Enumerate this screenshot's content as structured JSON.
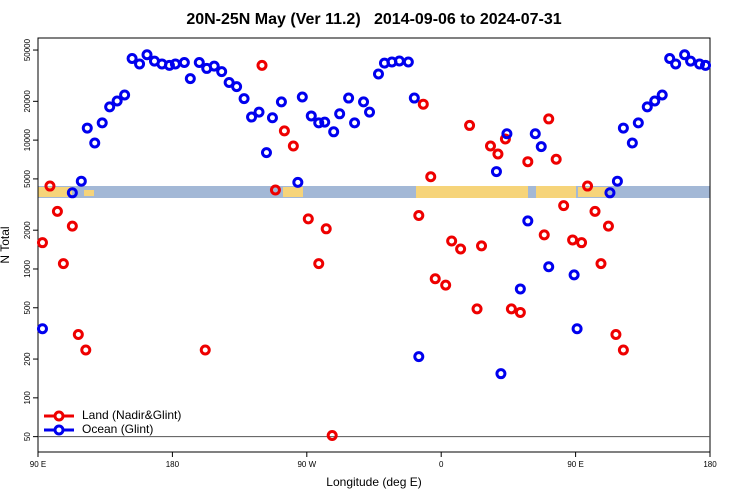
{
  "chart_data": {
    "type": "scatter",
    "title": "20N-25N May (Ver 11.2)   2014-09-06 to 2024-07-31",
    "x_label": "Longitude (deg E)",
    "y_label": "N Total",
    "xlim": [
      90,
      540
    ],
    "xticks": [
      {
        "value": 90,
        "label": "90 E"
      },
      {
        "value": 180,
        "label": "180"
      },
      {
        "value": 270,
        "label": "90 W"
      },
      {
        "value": 360,
        "label": "0"
      },
      {
        "value": 450,
        "label": "90 E"
      },
      {
        "value": 540,
        "label": "180"
      }
    ],
    "ylim": [
      38,
      62000
    ],
    "y_scale": "log",
    "yticks": [
      50,
      100,
      200,
      500,
      1000,
      2000,
      5000,
      10000,
      20000,
      50000
    ],
    "hline": 50,
    "legend": "lower left",
    "series": [
      {
        "name": "Land (Nadir&Glint)",
        "color": "#ee0000",
        "x": [
          93,
          98,
          103,
          107,
          113,
          117,
          122,
          202,
          240,
          249,
          255,
          261,
          271,
          278,
          283,
          287,
          345,
          348,
          353,
          356,
          363,
          367,
          373,
          379,
          384,
          387,
          393,
          398,
          403,
          407,
          413,
          418,
          429,
          432,
          437,
          442,
          448,
          454,
          458,
          463,
          467,
          472,
          477,
          482
        ],
        "values": [
          1600,
          4400,
          2800,
          1100,
          2150,
          310,
          235,
          235,
          38000,
          4100,
          11800,
          9000,
          2450,
          1100,
          2050,
          51,
          2600,
          19000,
          5200,
          840,
          750,
          1650,
          1430,
          13000,
          490,
          1510,
          9000,
          7800,
          10200,
          490,
          460,
          6800,
          1840,
          14600,
          7100,
          3100,
          1680,
          1600,
          4400,
          2800,
          1100,
          2150,
          310,
          235
        ]
      },
      {
        "name": "Ocean (Glint)",
        "color": "#0000ee",
        "x": [
          93,
          113,
          119,
          123,
          128,
          133,
          138,
          143,
          148,
          153,
          158,
          163,
          168,
          173,
          178,
          182,
          188,
          192,
          198,
          203,
          208,
          213,
          218,
          223,
          228,
          233,
          238,
          243,
          247,
          253,
          264,
          267,
          273,
          278,
          282,
          288,
          292,
          298,
          302,
          308,
          312,
          318,
          322,
          327,
          332,
          338,
          342,
          345,
          397,
          400,
          404,
          413,
          418,
          423,
          427,
          432,
          449,
          451,
          473,
          478,
          482,
          488,
          492,
          498,
          503,
          508,
          513,
          517,
          523,
          527,
          533,
          537
        ],
        "values": [
          344,
          3900,
          4800,
          12400,
          9500,
          13600,
          18100,
          20100,
          22400,
          43000,
          39000,
          46000,
          41000,
          39000,
          38000,
          39000,
          40000,
          30000,
          40000,
          36000,
          37500,
          34000,
          28000,
          26000,
          21000,
          15100,
          16500,
          8000,
          14900,
          19800,
          4700,
          21600,
          15400,
          13600,
          13800,
          11600,
          16000,
          21200,
          13600,
          19800,
          16500,
          32600,
          39600,
          40400,
          41100,
          40400,
          21200,
          209,
          5700,
          154,
          11200,
          700,
          2360,
          11200,
          8900,
          1040,
          900,
          344,
          3900,
          4800,
          12400,
          9500,
          13600,
          18100,
          20100,
          22400,
          43000,
          39000,
          46000,
          41000,
          39000,
          38000
        ]
      }
    ]
  }
}
